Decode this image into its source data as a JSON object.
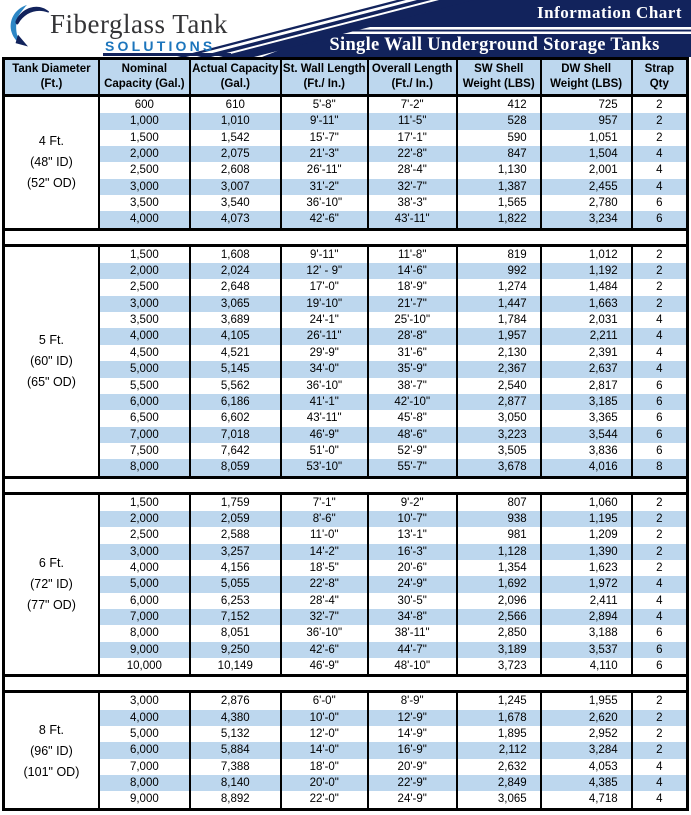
{
  "brand": {
    "name": "Fiberglass Tank",
    "subtitle": "SOLUTIONS",
    "logo_icon": "swoosh-wave-icon"
  },
  "header": {
    "title": "Information Chart",
    "subtitle": "Single Wall Underground Storage Tanks"
  },
  "colors": {
    "navy_band": "#12235C",
    "row_highlight_blue": "#BDD7EE",
    "header_cell_blue": "#BDD7EE",
    "solutions_blue": "#1C75BC",
    "logo_crescent_blue": "#2C86C5",
    "border_black": "#000000",
    "band_text_white": "#FFFFFF"
  },
  "table": {
    "col_keys": [
      "tank-diameter",
      "nominal-capacity",
      "actual-capacity",
      "st-wall-length",
      "overall-length",
      "sw-shell-weight",
      "dw-shell-weight",
      "strap-qty"
    ],
    "headers": [
      {
        "line1": "Tank Diameter",
        "line2": "(Ft.)"
      },
      {
        "line1": "Nominal",
        "line2": "Capacity (Gal.)"
      },
      {
        "line1": "Actual Capacity",
        "line2": "(Gal.)"
      },
      {
        "line1": "St. Wall Length",
        "line2": "(Ft./ In.)"
      },
      {
        "line1": "Overall Length",
        "line2": "(Ft./ In.)"
      },
      {
        "line1": "SW Shell",
        "line2": "Weight (LBS)"
      },
      {
        "line1": "DW Shell",
        "line2": "Weight (LBS)"
      },
      {
        "line1": "Strap Qty",
        "line2": ""
      }
    ],
    "sections": [
      {
        "id": "4-ft",
        "diameter_lines": [
          "4 Ft.",
          "(48\" ID)",
          "(52\" OD)"
        ],
        "rows": [
          [
            "600",
            "610",
            "5'-8\"",
            "7'-2\"",
            "412",
            "725",
            "2"
          ],
          [
            "1,000",
            "1,010",
            "9'-11\"",
            "11'-5\"",
            "528",
            "957",
            "2"
          ],
          [
            "1,500",
            "1,542",
            "15'-7\"",
            "17'-1\"",
            "590",
            "1,051",
            "2"
          ],
          [
            "2,000",
            "2,075",
            "21'-3\"",
            "22'-8\"",
            "847",
            "1,504",
            "4"
          ],
          [
            "2,500",
            "2,608",
            "26'-11\"",
            "28'-4\"",
            "1,130",
            "2,001",
            "4"
          ],
          [
            "3,000",
            "3,007",
            "31'-2\"",
            "32'-7\"",
            "1,387",
            "2,455",
            "4"
          ],
          [
            "3,500",
            "3,540",
            "36'-10\"",
            "38'-3\"",
            "1,565",
            "2,780",
            "6"
          ],
          [
            "4,000",
            "4,073",
            "42'-6\"",
            "43'-11\"",
            "1,822",
            "3,234",
            "6"
          ]
        ]
      },
      {
        "id": "5-ft",
        "diameter_lines": [
          "5 Ft.",
          "(60\" ID)",
          "(65\" OD)"
        ],
        "rows": [
          [
            "1,500",
            "1,608",
            "9'-11\"",
            "11'-8\"",
            "819",
            "1,012",
            "2"
          ],
          [
            "2,000",
            "2,024",
            "12' - 9\"",
            "14'-6\"",
            "992",
            "1,192",
            "2"
          ],
          [
            "2,500",
            "2,648",
            "17'-0\"",
            "18'-9\"",
            "1,274",
            "1,484",
            "2"
          ],
          [
            "3,000",
            "3,065",
            "19'-10\"",
            "21'-7\"",
            "1,447",
            "1,663",
            "2"
          ],
          [
            "3,500",
            "3,689",
            "24'-1\"",
            "25'-10\"",
            "1,784",
            "2,031",
            "4"
          ],
          [
            "4,000",
            "4,105",
            "26'-11\"",
            "28'-8\"",
            "1,957",
            "2,211",
            "4"
          ],
          [
            "4,500",
            "4,521",
            "29'-9\"",
            "31'-6\"",
            "2,130",
            "2,391",
            "4"
          ],
          [
            "5,000",
            "5,145",
            "34'-0\"",
            "35'-9\"",
            "2,367",
            "2,637",
            "4"
          ],
          [
            "5,500",
            "5,562",
            "36'-10\"",
            "38'-7\"",
            "2,540",
            "2,817",
            "6"
          ],
          [
            "6,000",
            "6,186",
            "41'-1\"",
            "42'-10\"",
            "2,877",
            "3,185",
            "6"
          ],
          [
            "6,500",
            "6,602",
            "43'-11\"",
            "45'-8\"",
            "3,050",
            "3,365",
            "6"
          ],
          [
            "7,000",
            "7,018",
            "46'-9\"",
            "48'-6\"",
            "3,223",
            "3,544",
            "6"
          ],
          [
            "7,500",
            "7,642",
            "51'-0\"",
            "52'-9\"",
            "3,505",
            "3,836",
            "6"
          ],
          [
            "8,000",
            "8,059",
            "53'-10\"",
            "55'-7\"",
            "3,678",
            "4,016",
            "8"
          ]
        ]
      },
      {
        "id": "6-ft",
        "diameter_lines": [
          "6 Ft.",
          "(72\" ID)",
          "(77\" OD)"
        ],
        "rows": [
          [
            "1,500",
            "1,759",
            "7'-1\"",
            "9'-2\"",
            "807",
            "1,060",
            "2"
          ],
          [
            "2,000",
            "2,059",
            "8'-6\"",
            "10'-7\"",
            "938",
            "1,195",
            "2"
          ],
          [
            "2,500",
            "2,588",
            "11'-0\"",
            "13'-1\"",
            "981",
            "1,209",
            "2"
          ],
          [
            "3,000",
            "3,257",
            "14'-2\"",
            "16'-3\"",
            "1,128",
            "1,390",
            "2"
          ],
          [
            "4,000",
            "4,156",
            "18'-5\"",
            "20'-6\"",
            "1,354",
            "1,623",
            "2"
          ],
          [
            "5,000",
            "5,055",
            "22'-8\"",
            "24'-9\"",
            "1,692",
            "1,972",
            "4"
          ],
          [
            "6,000",
            "6,253",
            "28'-4\"",
            "30'-5\"",
            "2,096",
            "2,411",
            "4"
          ],
          [
            "7,000",
            "7,152",
            "32'-7\"",
            "34'-8\"",
            "2,566",
            "2,894",
            "4"
          ],
          [
            "8,000",
            "8,051",
            "36'-10\"",
            "38'-11\"",
            "2,850",
            "3,188",
            "6"
          ],
          [
            "9,000",
            "9,250",
            "42'-6\"",
            "44'-7\"",
            "3,189",
            "3,537",
            "6"
          ],
          [
            "10,000",
            "10,149",
            "46'-9\"",
            "48'-10\"",
            "3,723",
            "4,110",
            "6"
          ]
        ]
      },
      {
        "id": "8-ft",
        "diameter_lines": [
          "8 Ft.",
          "(96\" ID)",
          "(101\" OD)"
        ],
        "rows": [
          [
            "3,000",
            "2,876",
            "6'-0\"",
            "8'-9\"",
            "1,245",
            "1,955",
            "2"
          ],
          [
            "4,000",
            "4,380",
            "10'-0\"",
            "12'-9\"",
            "1,678",
            "2,620",
            "2"
          ],
          [
            "5,000",
            "5,132",
            "12'-0\"",
            "14'-9\"",
            "1,895",
            "2,952",
            "2"
          ],
          [
            "6,000",
            "5,884",
            "14'-0\"",
            "16'-9\"",
            "2,112",
            "3,284",
            "2"
          ],
          [
            "7,000",
            "7,388",
            "18'-0\"",
            "20'-9\"",
            "2,632",
            "4,053",
            "4"
          ],
          [
            "8,000",
            "8,140",
            "20'-0\"",
            "22'-9\"",
            "2,849",
            "4,385",
            "4"
          ],
          [
            "9,000",
            "8,892",
            "22'-0\"",
            "24'-9\"",
            "3,065",
            "4,718",
            "4"
          ]
        ]
      }
    ]
  }
}
